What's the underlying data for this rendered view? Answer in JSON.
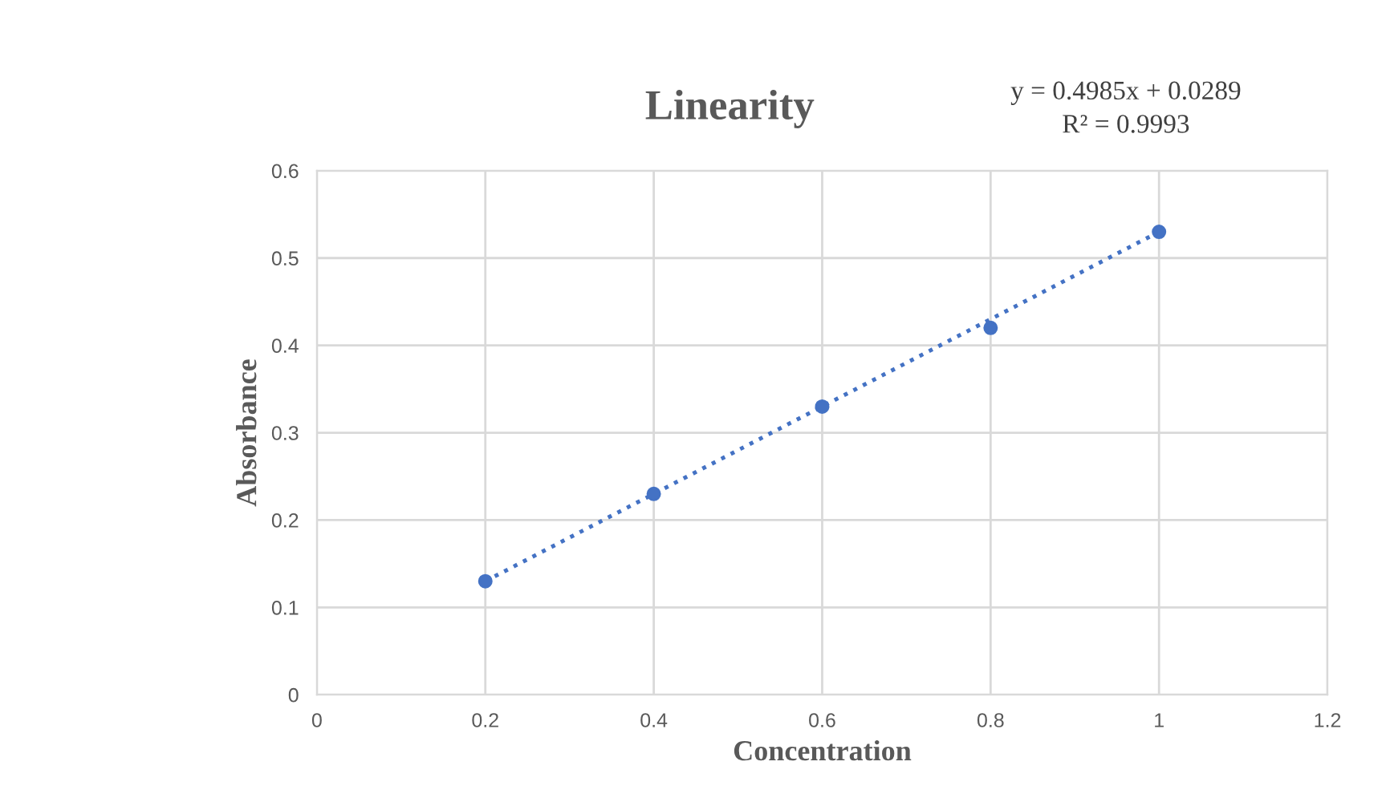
{
  "chart_data": {
    "type": "scatter",
    "title": "Linearity",
    "xlabel": "Concentration",
    "ylabel": "Absorbance",
    "annotations": [
      "y = 0.4985x + 0.0289",
      "R² = 0.9993"
    ],
    "x": [
      0.2,
      0.4,
      0.6,
      0.8,
      1.0
    ],
    "series": [
      {
        "color": "#4472c4",
        "values": [
          0.13,
          0.23,
          0.33,
          0.42,
          0.53
        ],
        "marker": "circle"
      },
      {
        "type": "line",
        "color": "#4472c4",
        "x": [
          0.2,
          1.0
        ],
        "values": [
          0.13,
          0.53
        ],
        "line_style": "dotted",
        "marker": "none"
      }
    ],
    "xlim": [
      0,
      1.2
    ],
    "xticks": [
      0,
      0.2,
      0.4,
      0.6,
      0.8,
      1,
      1.2
    ],
    "ylim": [
      0,
      0.6
    ],
    "yticks": [
      0,
      0.1,
      0.2,
      0.3,
      0.4,
      0.5,
      0.6
    ],
    "grid": true,
    "legend": false
  }
}
